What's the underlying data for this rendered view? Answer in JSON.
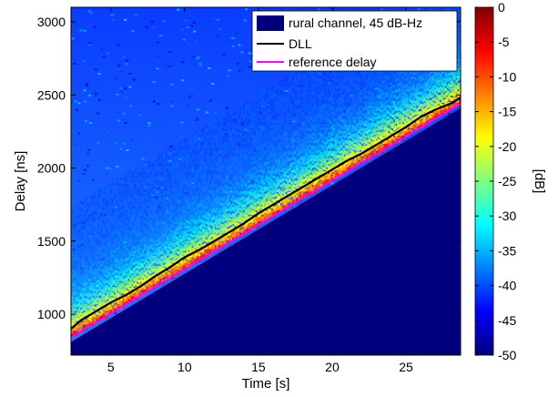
{
  "chart_data": {
    "type": "heatmap",
    "title": "",
    "xlabel": "Time [s]",
    "ylabel": "Delay [ns]",
    "xlim": [
      2.3,
      28.7
    ],
    "ylim": [
      720,
      3100
    ],
    "x_ticks": [
      5,
      10,
      15,
      20,
      25
    ],
    "y_ticks": [
      1000,
      1500,
      2000,
      2500,
      3000
    ],
    "grid": false,
    "legend_position": "top-right",
    "legend": [
      {
        "label": "rural channel, 45 dB-Hz",
        "marker": "patch",
        "color": "#00007f"
      },
      {
        "label": "DLL",
        "marker": "line",
        "color": "#000000"
      },
      {
        "label": "reference delay",
        "marker": "line",
        "color": "#ff00ff"
      }
    ],
    "colorbar": {
      "label": "[dB]",
      "range": [
        -50,
        0
      ],
      "ticks": [
        0,
        -5,
        -10,
        -15,
        -20,
        -25,
        -30,
        -35,
        -40,
        -45,
        -50
      ],
      "colormap": "jet"
    },
    "series": [
      {
        "name": "reference delay",
        "color": "#ff00ff",
        "x": [
          2.3,
          28.7
        ],
        "y": [
          840,
          2440
        ]
      },
      {
        "name": "DLL",
        "color": "#000000",
        "x": [
          2.3,
          3,
          4,
          5,
          6,
          7,
          8,
          9,
          10,
          11,
          12,
          13,
          14,
          15,
          16,
          17,
          18,
          19,
          20,
          21,
          22,
          23,
          24,
          25,
          26,
          27,
          28,
          28.7
        ],
        "y": [
          900,
          960,
          1020,
          1080,
          1130,
          1190,
          1260,
          1320,
          1390,
          1440,
          1500,
          1560,
          1620,
          1690,
          1750,
          1810,
          1870,
          1930,
          1990,
          2050,
          2100,
          2160,
          2220,
          2280,
          2350,
          2400,
          2440,
          2480
        ]
      }
    ],
    "heatmap_description_values": {
      "floor_db": -50,
      "peak_db": 0
    }
  }
}
